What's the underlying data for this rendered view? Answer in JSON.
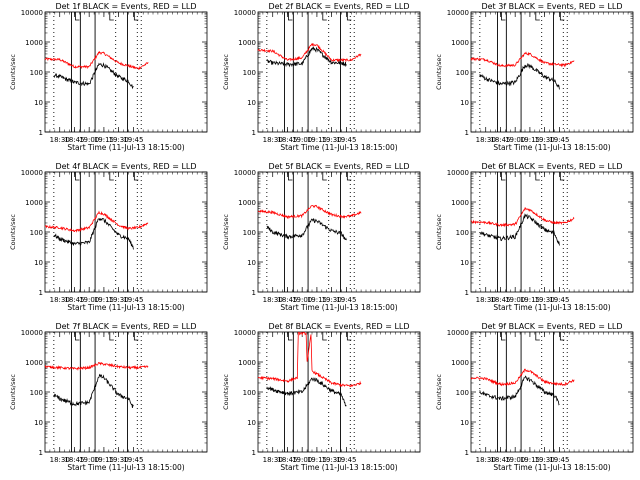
{
  "figure": {
    "background": "#ffffff",
    "colors": {
      "events": "#000000",
      "lld": "#ff0000",
      "axis": "#000000"
    }
  },
  "chart_data": [
    {
      "type": "line",
      "title": "Det 1f BLACK = Events, RED = LLD",
      "xlabel": "Start Time (11-Jul-13 18:15:00)",
      "ylabel": "Counts/sec",
      "yscale": "log",
      "ylim": [
        1,
        10000
      ],
      "yticks": [
        "1",
        "10",
        "100",
        "1000",
        "10000"
      ],
      "xlim_minutes": [
        0,
        165
      ],
      "xticks": [
        "18:30",
        "18:45",
        "19:00",
        "19:15",
        "19:30",
        "19:45"
      ],
      "solid_vlines": [
        "18:42",
        "18:51",
        "19:06",
        "19:39"
      ],
      "dotted_vlines": [
        "18:24",
        "19:27",
        "19:49",
        "19:53"
      ],
      "flag_marks": [
        "18:46",
        "19:21",
        "19:46"
      ],
      "series": [
        {
          "x": [
            "18:15",
            "18:30",
            "18:45",
            "19:00",
            "19:10",
            "19:15",
            "19:30",
            "19:40",
            "19:50",
            "20:00"
          ],
          "values": [
            270,
            260,
            150,
            150,
            450,
            420,
            200,
            160,
            130,
            200
          ]
        },
        {
          "x": [
            "18:24",
            "18:30",
            "18:45",
            "19:00",
            "19:10",
            "19:15",
            "19:30",
            "19:40",
            "19:45"
          ],
          "values": [
            80,
            70,
            45,
            40,
            180,
            170,
            70,
            50,
            30
          ]
        }
      ]
    },
    {
      "type": "line",
      "title": "Det 2f BLACK = Events, RED = LLD",
      "xlabel": "Start Time (11-Jul-13 18:15:00)",
      "ylabel": "Counts/sec",
      "yscale": "log",
      "ylim": [
        1,
        10000
      ],
      "yticks": [
        "1",
        "10",
        "100",
        "1000",
        "10000"
      ],
      "xlim_minutes": [
        0,
        165
      ],
      "xticks": [
        "18:30",
        "18:45",
        "19:00",
        "19:15",
        "19:30",
        "19:45"
      ],
      "solid_vlines": [
        "18:42",
        "18:51",
        "19:06",
        "19:39"
      ],
      "dotted_vlines": [
        "18:24",
        "19:27",
        "19:49",
        "19:53"
      ],
      "flag_marks": [
        "18:46",
        "19:21",
        "19:46"
      ],
      "series": [
        {
          "x": [
            "18:15",
            "18:30",
            "18:45",
            "19:00",
            "19:10",
            "19:15",
            "19:30",
            "19:40",
            "19:50",
            "20:00"
          ],
          "values": [
            550,
            500,
            250,
            300,
            850,
            800,
            250,
            250,
            250,
            400
          ]
        },
        {
          "x": [
            "18:24",
            "18:30",
            "18:45",
            "19:00",
            "19:10",
            "19:15",
            "19:30",
            "19:40",
            "19:45"
          ],
          "values": [
            230,
            200,
            180,
            190,
            600,
            550,
            210,
            200,
            190
          ]
        }
      ]
    },
    {
      "type": "line",
      "title": "Det 3f BLACK = Events, RED = LLD",
      "xlabel": "Start Time (11-Jul-13 18:15:00)",
      "ylabel": "Counts/sec",
      "yscale": "log",
      "ylim": [
        1,
        10000
      ],
      "yticks": [
        "1",
        "10",
        "100",
        "1000",
        "10000"
      ],
      "xlim_minutes": [
        0,
        165
      ],
      "xticks": [
        "18:30",
        "18:45",
        "19:00",
        "19:15",
        "19:30",
        "19:45"
      ],
      "solid_vlines": [
        "18:42",
        "18:51",
        "19:06",
        "19:39"
      ],
      "dotted_vlines": [
        "18:24",
        "19:27",
        "19:49",
        "19:53"
      ],
      "flag_marks": [
        "18:46",
        "19:21",
        "19:46"
      ],
      "series": [
        {
          "x": [
            "18:15",
            "18:30",
            "18:45",
            "19:00",
            "19:10",
            "19:15",
            "19:30",
            "19:40",
            "19:50",
            "20:00"
          ],
          "values": [
            280,
            260,
            160,
            170,
            420,
            400,
            200,
            180,
            170,
            230
          ]
        },
        {
          "x": [
            "18:24",
            "18:30",
            "18:45",
            "19:00",
            "19:10",
            "19:15",
            "19:30",
            "19:40",
            "19:45"
          ],
          "values": [
            80,
            60,
            40,
            45,
            170,
            160,
            70,
            50,
            30
          ]
        }
      ]
    },
    {
      "type": "line",
      "title": "Det 4f BLACK = Events, RED = LLD",
      "xlabel": "Start Time (11-Jul-13 18:15:00)",
      "ylabel": "Counts/sec",
      "yscale": "log",
      "ylim": [
        1,
        10000
      ],
      "yticks": [
        "1",
        "10",
        "100",
        "1000",
        "10000"
      ],
      "xlim_minutes": [
        0,
        165
      ],
      "xticks": [
        "18:30",
        "18:45",
        "19:00",
        "19:15",
        "19:30",
        "19:45"
      ],
      "solid_vlines": [
        "18:42",
        "18:51",
        "19:06",
        "19:39"
      ],
      "dotted_vlines": [
        "18:24",
        "19:27",
        "19:49",
        "19:53"
      ],
      "flag_marks": [
        "18:46",
        "19:21",
        "19:46"
      ],
      "series": [
        {
          "x": [
            "18:15",
            "18:30",
            "18:45",
            "19:00",
            "19:10",
            "19:15",
            "19:30",
            "19:40",
            "19:50",
            "20:00"
          ],
          "values": [
            150,
            140,
            110,
            140,
            450,
            400,
            170,
            130,
            140,
            200
          ]
        },
        {
          "x": [
            "18:24",
            "18:30",
            "18:45",
            "19:00",
            "19:10",
            "19:15",
            "19:30",
            "19:40",
            "19:45"
          ],
          "values": [
            80,
            60,
            40,
            45,
            300,
            250,
            80,
            60,
            30
          ]
        }
      ]
    },
    {
      "type": "line",
      "title": "Det 5f BLACK = Events, RED = LLD",
      "xlabel": "Start Time (11-Jul-13 18:15:00)",
      "ylabel": "Counts/sec",
      "yscale": "log",
      "ylim": [
        1,
        10000
      ],
      "yticks": [
        "1",
        "10",
        "100",
        "1000",
        "10000"
      ],
      "xlim_minutes": [
        0,
        165
      ],
      "xticks": [
        "18:30",
        "18:45",
        "19:00",
        "19:15",
        "19:30",
        "19:45"
      ],
      "solid_vlines": [
        "18:42",
        "18:51",
        "19:06",
        "19:39"
      ],
      "dotted_vlines": [
        "18:24",
        "19:27",
        "19:49",
        "19:53"
      ],
      "flag_marks": [
        "18:46",
        "19:21",
        "19:46"
      ],
      "series": [
        {
          "x": [
            "18:15",
            "18:30",
            "18:45",
            "19:00",
            "19:10",
            "19:15",
            "19:30",
            "19:40",
            "19:50",
            "20:00"
          ],
          "values": [
            500,
            450,
            320,
            350,
            750,
            700,
            380,
            330,
            340,
            450
          ]
        },
        {
          "x": [
            "18:24",
            "18:30",
            "18:45",
            "19:00",
            "19:10",
            "19:15",
            "19:30",
            "19:40",
            "19:45"
          ],
          "values": [
            150,
            100,
            70,
            80,
            250,
            230,
            110,
            90,
            50
          ]
        }
      ]
    },
    {
      "type": "line",
      "title": "Det 6f BLACK = Events, RED = LLD",
      "xlabel": "Start Time (11-Jul-13 18:15:00)",
      "ylabel": "Counts/sec",
      "yscale": "log",
      "ylim": [
        1,
        10000
      ],
      "yticks": [
        "1",
        "10",
        "100",
        "1000",
        "10000"
      ],
      "xlim_minutes": [
        0,
        165
      ],
      "xticks": [
        "18:30",
        "18:45",
        "19:00",
        "19:15",
        "19:30",
        "19:45"
      ],
      "solid_vlines": [
        "18:42",
        "18:51",
        "19:06",
        "19:39"
      ],
      "dotted_vlines": [
        "18:24",
        "19:27",
        "19:49",
        "19:53"
      ],
      "flag_marks": [
        "18:46",
        "19:21",
        "19:46"
      ],
      "series": [
        {
          "x": [
            "18:15",
            "18:30",
            "18:45",
            "19:00",
            "19:10",
            "19:15",
            "19:30",
            "19:40",
            "19:50",
            "20:00"
          ],
          "values": [
            220,
            210,
            170,
            180,
            600,
            550,
            250,
            200,
            200,
            280
          ]
        },
        {
          "x": [
            "18:24",
            "18:30",
            "18:45",
            "19:00",
            "19:10",
            "19:15",
            "19:30",
            "19:40",
            "19:45"
          ],
          "values": [
            100,
            80,
            60,
            70,
            350,
            300,
            120,
            90,
            40
          ]
        }
      ]
    },
    {
      "type": "line",
      "title": "Det 7f BLACK = Events, RED = LLD",
      "xlabel": "Start Time (11-Jul-13 18:15:00)",
      "ylabel": "Counts/sec",
      "yscale": "log",
      "ylim": [
        1,
        10000
      ],
      "yticks": [
        "1",
        "10",
        "100",
        "1000",
        "10000"
      ],
      "xlim_minutes": [
        0,
        165
      ],
      "xticks": [
        "18:30",
        "18:45",
        "19:00",
        "19:15",
        "19:30",
        "19:45"
      ],
      "solid_vlines": [
        "18:42",
        "18:51",
        "19:06",
        "19:39"
      ],
      "dotted_vlines": [
        "18:24",
        "19:27",
        "19:49",
        "19:53"
      ],
      "flag_marks": [
        "18:46",
        "19:21",
        "19:46"
      ],
      "series": [
        {
          "x": [
            "18:15",
            "18:30",
            "18:45",
            "19:00",
            "19:10",
            "19:15",
            "19:30",
            "19:40",
            "19:50",
            "20:00"
          ],
          "values": [
            700,
            650,
            600,
            650,
            900,
            850,
            700,
            650,
            650,
            700
          ]
        },
        {
          "x": [
            "18:24",
            "18:30",
            "18:45",
            "19:00",
            "19:10",
            "19:15",
            "19:30",
            "19:40",
            "19:45"
          ],
          "values": [
            80,
            60,
            40,
            45,
            350,
            300,
            80,
            60,
            30
          ]
        }
      ]
    },
    {
      "type": "line",
      "title": "Det 8f BLACK = Events, RED = LLD",
      "xlabel": "Start Time (11-Jul-13 18:15:00)",
      "ylabel": "Counts/sec",
      "yscale": "log",
      "ylim": [
        1,
        10000
      ],
      "yticks": [
        "1",
        "10",
        "100",
        "1000",
        "10000"
      ],
      "xlim_minutes": [
        0,
        165
      ],
      "xticks": [
        "18:30",
        "18:45",
        "19:00",
        "19:15",
        "19:30",
        "19:45"
      ],
      "solid_vlines": [
        "18:42",
        "18:51",
        "19:06",
        "19:39"
      ],
      "dotted_vlines": [
        "18:24",
        "19:27",
        "19:49",
        "19:53"
      ],
      "flag_marks": [
        "18:46",
        "19:21",
        "19:46"
      ],
      "series": [
        {
          "x": [
            "18:15",
            "18:30",
            "18:45",
            "18:55",
            "18:56",
            "19:04",
            "19:05",
            "19:09",
            "19:10",
            "19:15",
            "19:30",
            "19:40",
            "19:50",
            "20:00"
          ],
          "values": [
            300,
            280,
            230,
            300,
            9000,
            9000,
            1000,
            8000,
            500,
            400,
            200,
            170,
            160,
            200
          ]
        },
        {
          "x": [
            "18:24",
            "18:30",
            "18:45",
            "19:00",
            "19:10",
            "19:15",
            "19:30",
            "19:40",
            "19:45"
          ],
          "values": [
            150,
            120,
            90,
            100,
            280,
            250,
            110,
            80,
            30
          ]
        }
      ]
    },
    {
      "type": "line",
      "title": "Det 9f BLACK = Events, RED = LLD",
      "xlabel": "Start Time (11-Jul-13 18:15:00)",
      "ylabel": "Counts/sec",
      "yscale": "log",
      "ylim": [
        1,
        10000
      ],
      "yticks": [
        "1",
        "10",
        "100",
        "1000",
        "10000"
      ],
      "xlim_minutes": [
        0,
        165
      ],
      "xticks": [
        "18:30",
        "18:45",
        "19:00",
        "19:15",
        "19:30",
        "19:45"
      ],
      "solid_vlines": [
        "18:42",
        "18:51",
        "19:06",
        "19:39"
      ],
      "dotted_vlines": [
        "18:24",
        "19:27",
        "19:49",
        "19:53"
      ],
      "flag_marks": [
        "18:46",
        "19:21",
        "19:46"
      ],
      "series": [
        {
          "x": [
            "18:15",
            "18:30",
            "18:45",
            "19:00",
            "19:10",
            "19:15",
            "19:30",
            "19:40",
            "19:50",
            "20:00"
          ],
          "values": [
            300,
            280,
            180,
            200,
            550,
            500,
            220,
            190,
            180,
            250
          ]
        },
        {
          "x": [
            "18:24",
            "18:30",
            "18:45",
            "19:00",
            "19:10",
            "19:15",
            "19:30",
            "19:40",
            "19:45"
          ],
          "values": [
            100,
            80,
            60,
            70,
            300,
            260,
            100,
            80,
            40
          ]
        }
      ]
    }
  ]
}
